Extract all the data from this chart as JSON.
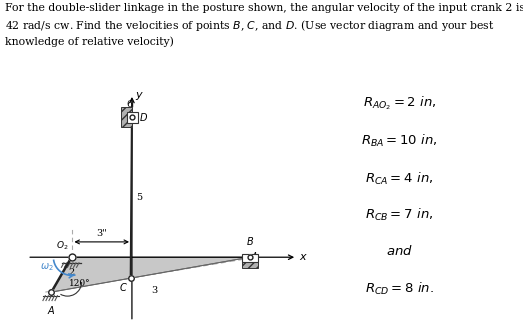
{
  "bg_color": "#ffffff",
  "text_color": "#000000",
  "link_color": "#333333",
  "fill_color": "#c8c8c8",
  "blue_color": "#4488cc",
  "eq_lines": [
    "$R_{AO_2} = 2\\ in,$",
    "$R_{BA} = 10\\ in,$",
    "$R_{CA} = 4\\ in,$",
    "$R_{CB} = 7\\ in,$",
    "$and$",
    "$R_{CD} = 8\\ in.$"
  ],
  "header_text": "For the double-slider linkage in the posture shown, the angular velocity of the input crank 2 is\n42 rad/s cw. Find the velocities of points $B$, $C$, and $D$. (Use vector diagram and your best\nknowledge of relative velocity)",
  "header_fontsize": 7.8,
  "eq_fontsize": 9.5,
  "diagram_fontsize": 7
}
